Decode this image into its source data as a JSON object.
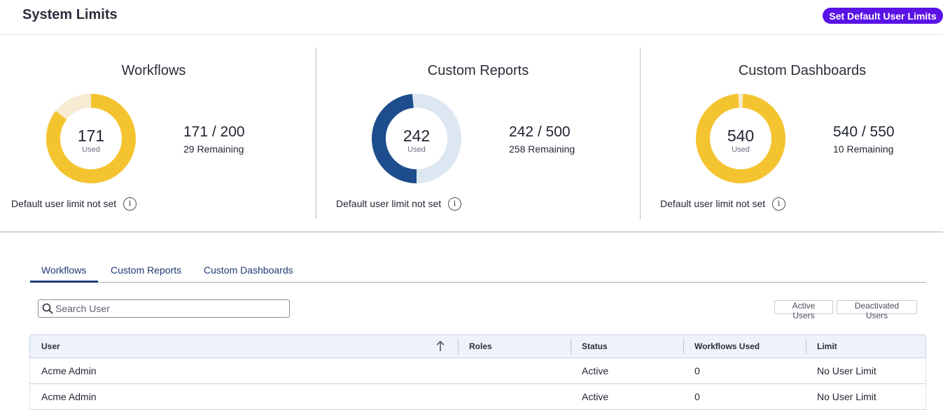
{
  "header": {
    "title": "System Limits",
    "action_label": "Set Default User Limits"
  },
  "colors": {
    "primary_button": "#5a12e6",
    "gold": "#f4c430",
    "gold_track": "#f6ecd3",
    "navy": "#1d4d8c",
    "navy_track": "#dde7f1",
    "tab_active": "#1d3a73"
  },
  "summary": [
    {
      "title": "Workflows",
      "used": "171",
      "used_label": "Used",
      "ratio": "171 / 200",
      "remaining": "29 Remaining",
      "used_fraction": 0.855,
      "note": "Default user limit not set",
      "info_icon": "i"
    },
    {
      "title": "Custom Reports",
      "used": "242",
      "used_label": "Used",
      "ratio": "242 / 500",
      "remaining": "258 Remaining",
      "used_fraction": 0.484,
      "note": "Default user limit not set",
      "info_icon": "i"
    },
    {
      "title": "Custom Dashboards",
      "used": "540",
      "used_label": "Used",
      "ratio": "540 / 550",
      "remaining": "10 Remaining",
      "used_fraction": 0.982,
      "note": "Default user limit not set",
      "info_icon": "i"
    }
  ],
  "tabs": [
    {
      "label": "Workflows",
      "active": true
    },
    {
      "label": "Custom Reports",
      "active": false
    },
    {
      "label": "Custom Dashboards",
      "active": false
    }
  ],
  "search": {
    "placeholder": "Search User",
    "value": ""
  },
  "filters": [
    "Active Users",
    "Deactivated Users"
  ],
  "table": {
    "columns": [
      "User",
      "Roles",
      "Status",
      "Workflows Used",
      "Limit"
    ],
    "sort": {
      "column": "User",
      "direction": "ascending"
    },
    "rows": [
      {
        "user": "Acme Admin",
        "roles": "",
        "status": "Active",
        "used": "0",
        "limit": "No User Limit"
      },
      {
        "user": "Acme Admin",
        "roles": "",
        "status": "Active",
        "used": "0",
        "limit": "No User Limit"
      }
    ]
  }
}
